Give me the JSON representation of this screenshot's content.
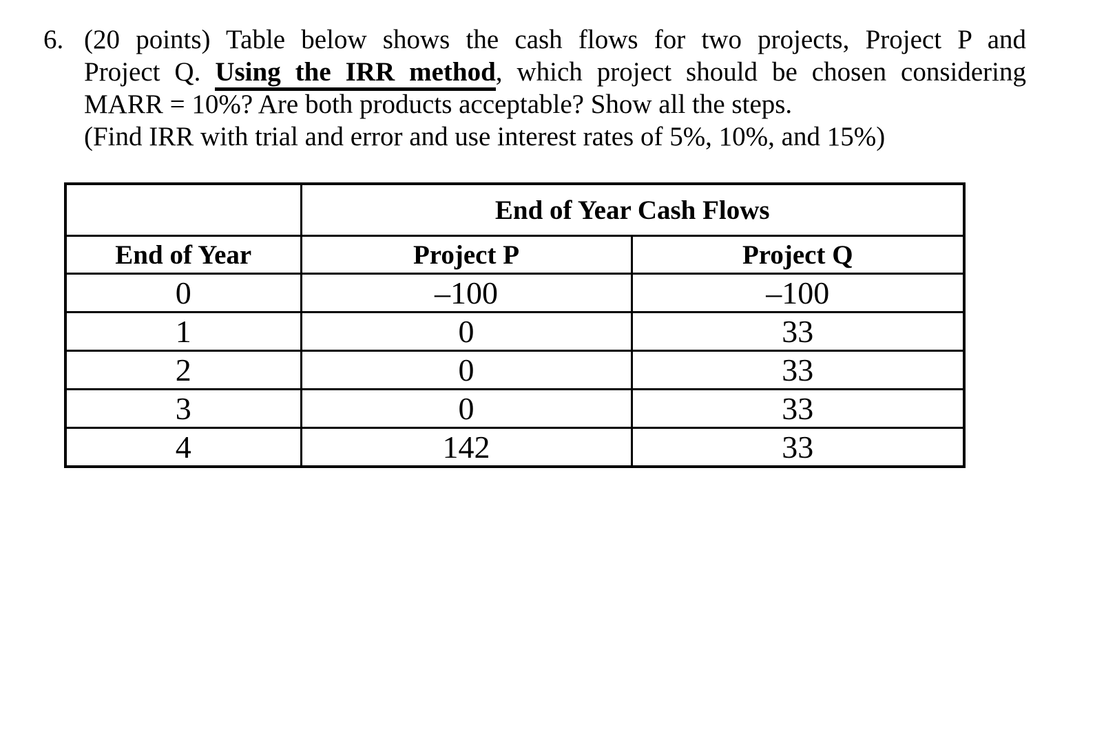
{
  "problem": {
    "number": "6.",
    "line1": "(20 points) Table below shows the cash flows for two projects, Project P and",
    "line2": {
      "pre": "Project Q. ",
      "emphasis": "Using the IRR method",
      "post": ", which project should be chosen considering"
    },
    "line3": "MARR = 10%? Are both products acceptable? Show all the steps.",
    "line4": "(Find IRR with trial and error and use interest rates of 5%, 10%, and 15%)"
  },
  "table": {
    "span_header": "End of Year Cash Flows",
    "columns": [
      "End of Year",
      "Project P",
      "Project Q"
    ],
    "rows": [
      {
        "year": "0",
        "project_p": "–100",
        "project_q": "–100"
      },
      {
        "year": "1",
        "project_p": "0",
        "project_q": "33"
      },
      {
        "year": "2",
        "project_p": "0",
        "project_q": "33"
      },
      {
        "year": "3",
        "project_p": "0",
        "project_q": "33"
      },
      {
        "year": "4",
        "project_p": "142",
        "project_q": "33"
      }
    ]
  },
  "colors": {
    "text": "#000000",
    "background": "#ffffff",
    "table_border": "#000000"
  }
}
